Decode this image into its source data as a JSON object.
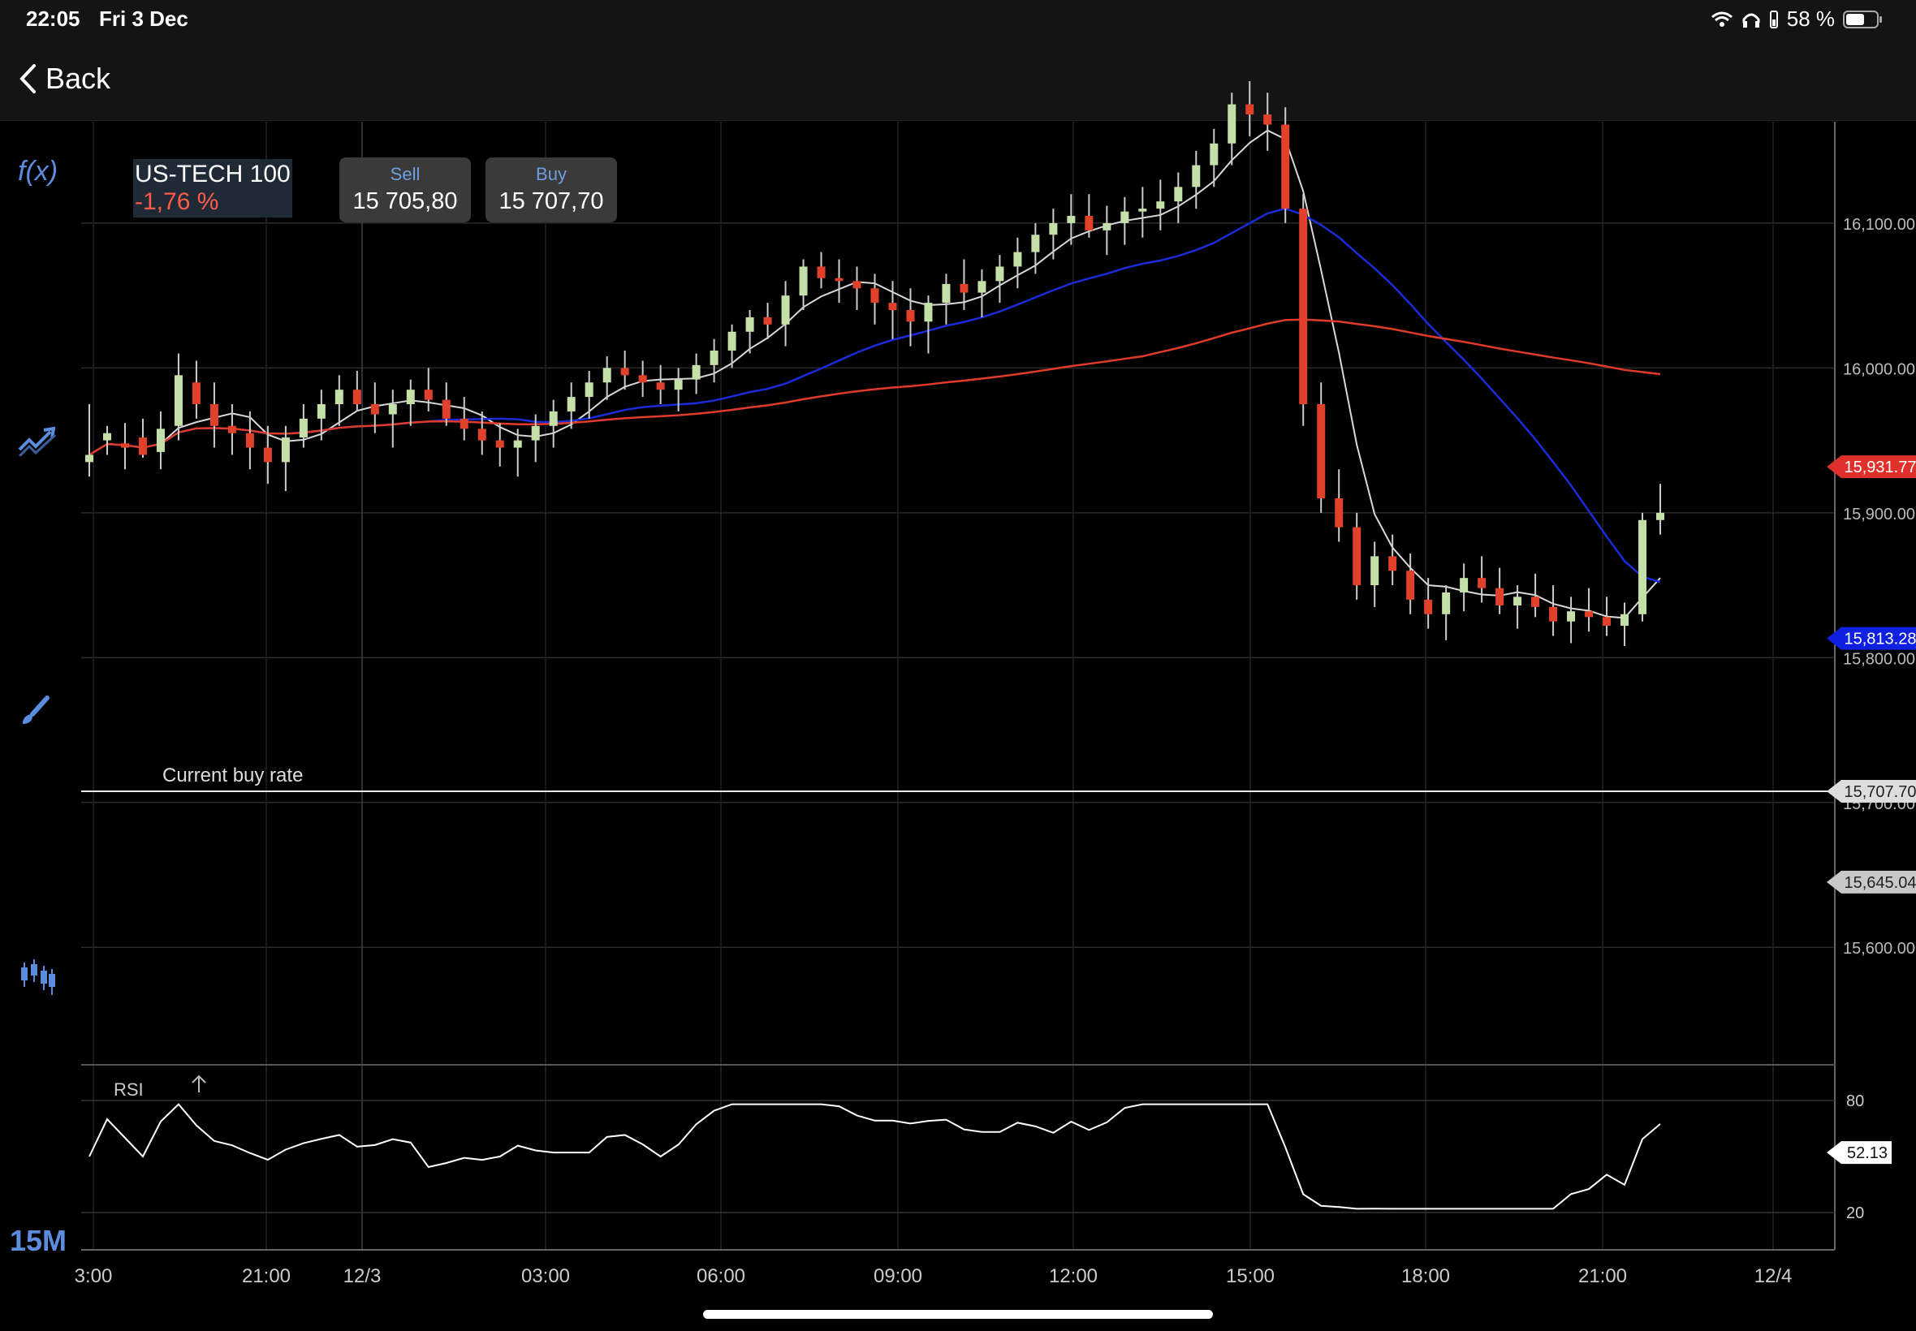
{
  "status": {
    "time": "22:05",
    "date": "Fri 3 Dec",
    "battery": "58 %"
  },
  "nav": {
    "back_label": "Back"
  },
  "instrument": {
    "name": "US-TECH 100",
    "change": "-1,76 %"
  },
  "quotes": {
    "sell_label": "Sell",
    "sell_value": "15 705,80",
    "buy_label": "Buy",
    "buy_value": "15 707,70"
  },
  "toolbar": {
    "fx_label": "f(x)",
    "timeframe": "15M"
  },
  "chart_data": {
    "type": "candlestick",
    "y_ticks": [
      "16,100.00",
      "16,000.00",
      "15,900.00",
      "15,800.00",
      "15,700.00",
      "15,600.00"
    ],
    "x_ticks": [
      "3:00",
      "21:00",
      "12/3",
      "03:00",
      "06:00",
      "09:00",
      "12:00",
      "15:00",
      "18:00",
      "21:00",
      "12/4"
    ],
    "current_buy_rate_label": "Current buy rate",
    "current_buy_rate": "15,707.70",
    "price_tags": [
      {
        "value": "15,931.77",
        "color": "#e0302c"
      },
      {
        "value": "15,813.28",
        "color": "#1020e0"
      },
      {
        "value": "15,707.70",
        "color": "#dddddd"
      },
      {
        "value": "15,645.04",
        "color": "#c8c8c8"
      }
    ],
    "moving_average_colors": {
      "slow": "#e03a2a",
      "mid": "#1a2bd8",
      "fast": "#d8d8d8"
    },
    "candle_colors": {
      "up": "#c4e0a8",
      "down": "#e1402a"
    },
    "ohlc": [
      [
        15935,
        15975,
        15925,
        15940
      ],
      [
        15950,
        15960,
        15940,
        15955
      ],
      [
        15948,
        15962,
        15930,
        15945
      ],
      [
        15952,
        15965,
        15938,
        15940
      ],
      [
        15942,
        15970,
        15930,
        15958
      ],
      [
        15960,
        16010,
        15950,
        15995
      ],
      [
        15990,
        16005,
        15965,
        15975
      ],
      [
        15975,
        15990,
        15945,
        15960
      ],
      [
        15960,
        15975,
        15940,
        15955
      ],
      [
        15955,
        15970,
        15930,
        15945
      ],
      [
        15945,
        15960,
        15920,
        15935
      ],
      [
        15935,
        15960,
        15915,
        15952
      ],
      [
        15952,
        15975,
        15945,
        15965
      ],
      [
        15965,
        15985,
        15950,
        15975
      ],
      [
        15975,
        15995,
        15960,
        15985
      ],
      [
        15985,
        15998,
        15970,
        15975
      ],
      [
        15975,
        15990,
        15955,
        15968
      ],
      [
        15968,
        15985,
        15945,
        15975
      ],
      [
        15975,
        15992,
        15960,
        15985
      ],
      [
        15985,
        16000,
        15970,
        15978
      ],
      [
        15978,
        15990,
        15960,
        15965
      ],
      [
        15965,
        15980,
        15950,
        15958
      ],
      [
        15958,
        15970,
        15940,
        15950
      ],
      [
        15950,
        15962,
        15932,
        15945
      ],
      [
        15945,
        15958,
        15925,
        15950
      ],
      [
        15950,
        15968,
        15935,
        15960
      ],
      [
        15960,
        15978,
        15945,
        15970
      ],
      [
        15970,
        15990,
        15958,
        15980
      ],
      [
        15980,
        15998,
        15965,
        15990
      ],
      [
        15990,
        16008,
        15978,
        16000
      ],
      [
        16000,
        16012,
        15985,
        15995
      ],
      [
        15995,
        16005,
        15980,
        15990
      ],
      [
        15990,
        16002,
        15975,
        15985
      ],
      [
        15985,
        16000,
        15970,
        15992
      ],
      [
        15992,
        16010,
        15982,
        16002
      ],
      [
        16002,
        16020,
        15990,
        16012
      ],
      [
        16012,
        16030,
        16000,
        16025
      ],
      [
        16025,
        16040,
        16010,
        16035
      ],
      [
        16035,
        16045,
        16020,
        16030
      ],
      [
        16030,
        16060,
        16015,
        16050
      ],
      [
        16050,
        16075,
        16040,
        16070
      ],
      [
        16070,
        16080,
        16055,
        16062
      ],
      [
        16062,
        16075,
        16045,
        16060
      ],
      [
        16060,
        16070,
        16040,
        16055
      ],
      [
        16055,
        16065,
        16030,
        16045
      ],
      [
        16045,
        16060,
        16020,
        16040
      ],
      [
        16040,
        16055,
        16015,
        16032
      ],
      [
        16032,
        16050,
        16010,
        16045
      ],
      [
        16045,
        16065,
        16030,
        16058
      ],
      [
        16058,
        16075,
        16040,
        16052
      ],
      [
        16052,
        16068,
        16035,
        16060
      ],
      [
        16060,
        16078,
        16045,
        16070
      ],
      [
        16070,
        16090,
        16055,
        16080
      ],
      [
        16080,
        16100,
        16065,
        16092
      ],
      [
        16092,
        16110,
        16075,
        16100
      ],
      [
        16100,
        16120,
        16085,
        16105
      ],
      [
        16105,
        16120,
        16090,
        16095
      ],
      [
        16095,
        16112,
        16078,
        16100
      ],
      [
        16100,
        16118,
        16085,
        16108
      ],
      [
        16108,
        16125,
        16090,
        16110
      ],
      [
        16110,
        16130,
        16095,
        16115
      ],
      [
        16115,
        16135,
        16100,
        16125
      ],
      [
        16125,
        16150,
        16110,
        16140
      ],
      [
        16140,
        16165,
        16125,
        16155
      ],
      [
        16155,
        16190,
        16140,
        16182
      ],
      [
        16182,
        16198,
        16160,
        16175
      ],
      [
        16175,
        16190,
        16150,
        16168
      ],
      [
        16168,
        16180,
        16100,
        16110
      ],
      [
        16110,
        16120,
        15960,
        15975
      ],
      [
        15975,
        15990,
        15900,
        15910
      ],
      [
        15910,
        15930,
        15880,
        15890
      ],
      [
        15890,
        15900,
        15840,
        15850
      ],
      [
        15850,
        15880,
        15835,
        15870
      ],
      [
        15870,
        15885,
        15850,
        15860
      ],
      [
        15860,
        15872,
        15830,
        15840
      ],
      [
        15840,
        15855,
        15820,
        15830
      ],
      [
        15830,
        15850,
        15812,
        15845
      ],
      [
        15845,
        15865,
        15832,
        15855
      ],
      [
        15855,
        15870,
        15838,
        15848
      ],
      [
        15848,
        15862,
        15830,
        15836
      ],
      [
        15836,
        15850,
        15820,
        15842
      ],
      [
        15842,
        15858,
        15828,
        15835
      ],
      [
        15835,
        15850,
        15815,
        15825
      ],
      [
        15825,
        15842,
        15810,
        15832
      ],
      [
        15832,
        15848,
        15818,
        15828
      ],
      [
        15828,
        15842,
        15815,
        15822
      ],
      [
        15822,
        15838,
        15808,
        15830
      ],
      [
        15830,
        15900,
        15825,
        15895
      ],
      [
        15895,
        15920,
        15885,
        15900
      ]
    ],
    "rsi": {
      "label": "RSI",
      "levels": [
        "80",
        "20"
      ],
      "current": "52.13"
    }
  }
}
